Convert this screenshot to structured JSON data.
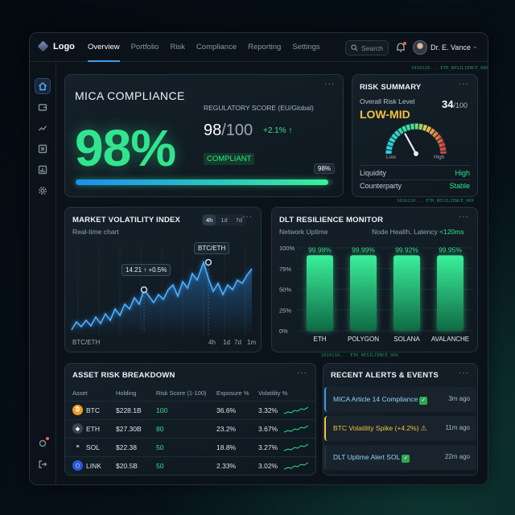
{
  "header": {
    "logo": "Logo",
    "nav": [
      "Overview",
      "Portfolio",
      "Risk",
      "Compliance",
      "Reporting",
      "Settings"
    ],
    "search_placeholder": "Search",
    "user": "Dr. E. Vance",
    "ticker": "1010110... ETH_RESILIENCE_00X"
  },
  "sidebar": {
    "icons": [
      "home-icon",
      "wallet-icon",
      "chart-line-icon",
      "exchange-icon",
      "bar-chart-icon",
      "gear-icon"
    ],
    "bottom": [
      "notification-gear-icon",
      "logout-icon"
    ]
  },
  "mica": {
    "title": "MICA COMPLIANCE",
    "percent": "98%",
    "reg_label": "REGULATORY SCORE (EU/Global)",
    "score": "98",
    "score_den": "/100",
    "delta": "+2.1% ↑",
    "status": "COMPLIANT",
    "progress_label": "98%",
    "progress": 0.98
  },
  "risk": {
    "title": "RISK SUMMARY",
    "level_label": "Overall Risk Level",
    "score": "34",
    "score_den": "/100",
    "level": "LOW-MID",
    "low": "Low",
    "high": "High",
    "gauge_value": 0.34,
    "rows": [
      {
        "label": "Liquidity",
        "value": "High"
      },
      {
        "label": "Counterparty",
        "value": "Stable"
      }
    ]
  },
  "volatility": {
    "title": "MARKET VOLATILITY INDEX",
    "subtitle": "Real-time chart",
    "ranges": [
      "4h",
      "1d",
      "7d"
    ],
    "tip1": "14.21 ↑ +0.5%",
    "tip2": "BTC/ETH",
    "footer_label": "BTC/ETH",
    "footer_ranges": [
      "4h",
      "1d",
      "7d",
      "1m"
    ]
  },
  "dlt": {
    "title": "DLT RESILIENCE MONITOR",
    "subtitle": "Network Uptime",
    "right_label": "Node Health, Latency",
    "latency": "<120ms"
  },
  "chart_data": {
    "type": "bar",
    "categories": [
      "ETH",
      "POLYGON",
      "SOLANA",
      "AVALANCHE"
    ],
    "values": [
      99.98,
      99.99,
      99.92,
      99.95
    ],
    "labels": [
      "99.98%",
      "99.99%",
      "99.92%",
      "99.95%"
    ],
    "yticks": [
      "100%",
      "75%",
      "50%",
      "25%",
      "0%"
    ],
    "ylim": [
      0,
      100
    ]
  },
  "assets": {
    "title": "ASSET RISK BREAKDOWN",
    "columns": [
      "Asset",
      "Holding",
      "Risk Score (1-100)",
      "Exposure %",
      "Volatility %"
    ],
    "rows": [
      {
        "asset": "BTC",
        "holding": "$228.1B",
        "risk": "100",
        "exposure": "36.6%",
        "vol": "3.32%",
        "color": "#f39b25",
        "glyph": "₿"
      },
      {
        "asset": "ETH",
        "holding": "$27.30B",
        "risk": "80",
        "exposure": "23.2%",
        "vol": "3.67%",
        "color": "#3c4458",
        "glyph": "◆"
      },
      {
        "asset": "SOL",
        "holding": "$22.38",
        "risk": "50",
        "exposure": "18.8%",
        "vol": "3.27%",
        "color": "#101820",
        "glyph": "≡"
      },
      {
        "asset": "LINK",
        "holding": "$20.5B",
        "risk": "50",
        "exposure": "2.33%",
        "vol": "3.02%",
        "color": "#2a5ad8",
        "glyph": "⬡"
      }
    ]
  },
  "alerts": {
    "title": "RECENT ALERTS & EVENTS",
    "items": [
      {
        "text": "MICA Article 14 Compliance",
        "time": "3m ago",
        "kind": "ok"
      },
      {
        "text": "BTC Volatility Spike (+4.2%)",
        "time": "11m ago",
        "kind": "warn"
      },
      {
        "text": "DLT Uptime Alert SOL",
        "time": "22m ago",
        "kind": "ok"
      }
    ]
  },
  "colors": {
    "accent": "#3a9df5",
    "green": "#31e58f",
    "yellow": "#f4c23c"
  }
}
